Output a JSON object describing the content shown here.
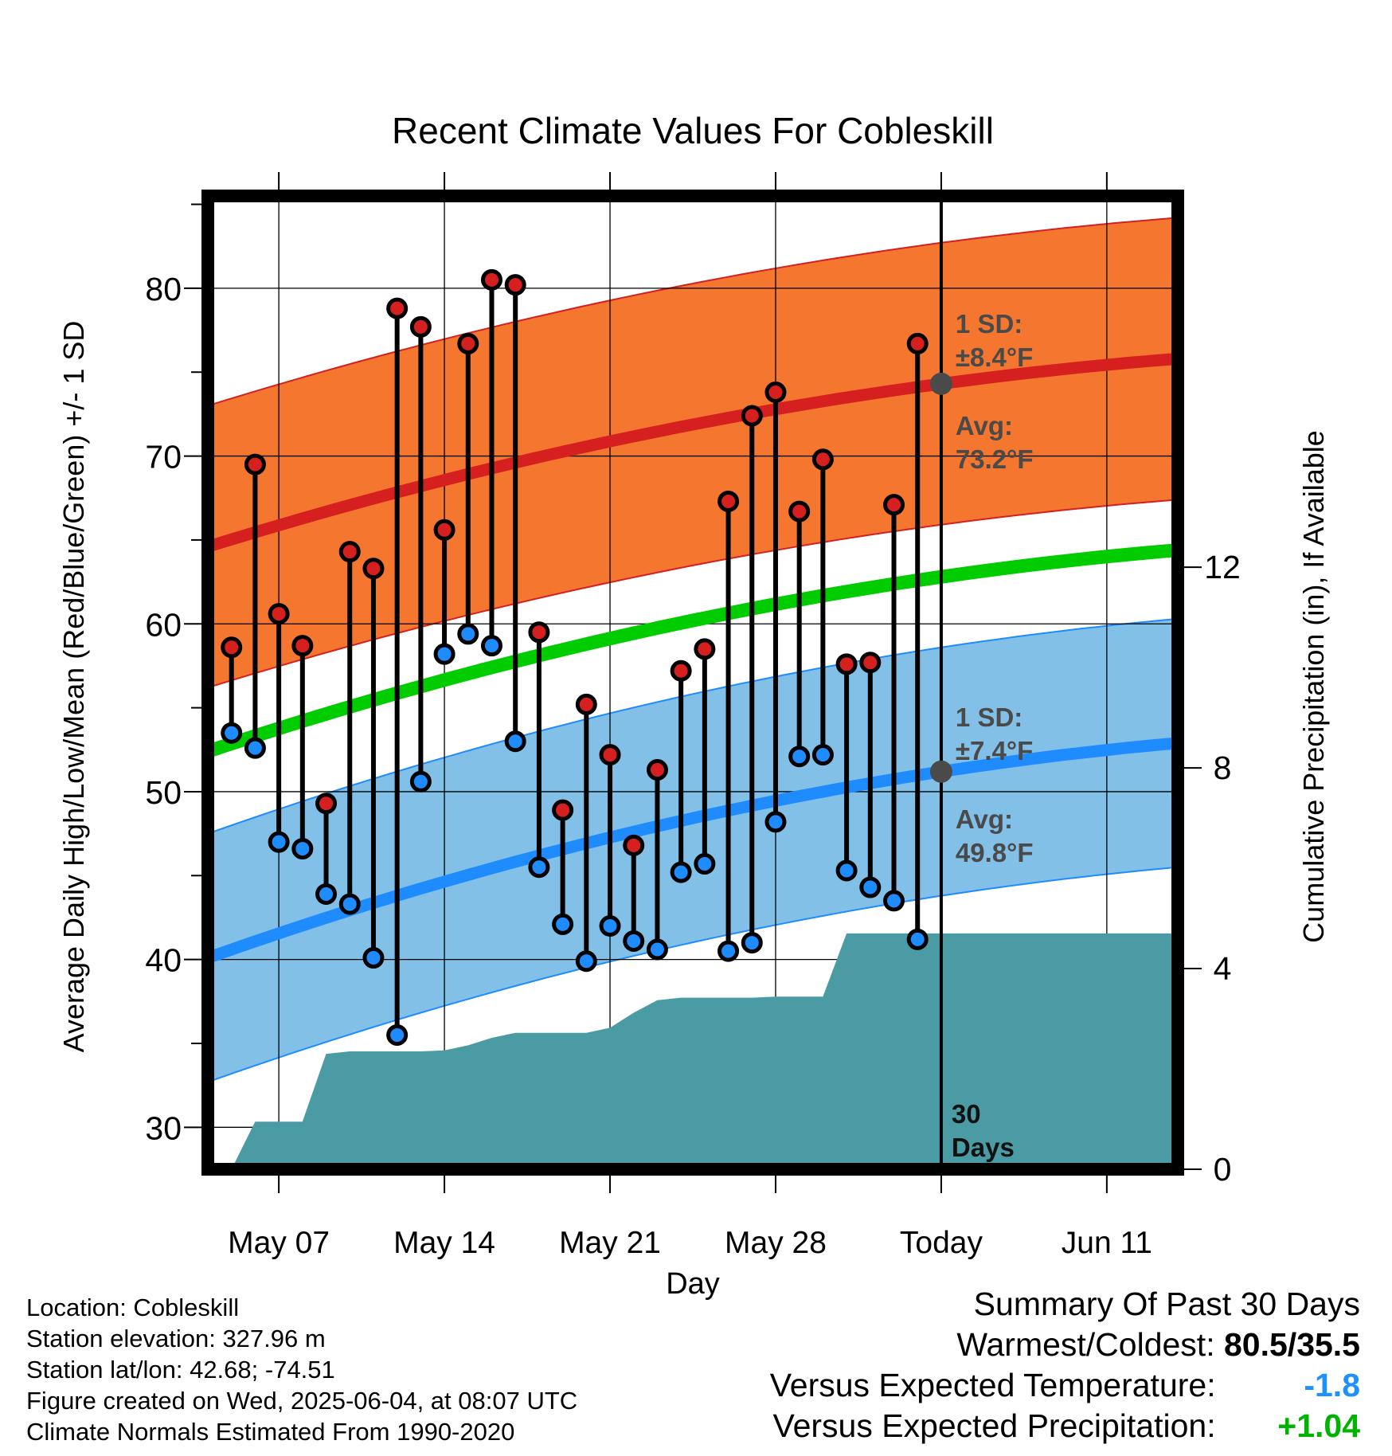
{
  "chart_data": {
    "type": "line",
    "title": "Recent Climate Values For Cobleskill",
    "xlabel": "Day",
    "ylabel": "Average Daily High/Low/Mean (Red/Blue/Green) +/- 1 SD",
    "y2label": "Cumulative Precipitation (in), If Available",
    "ylim": [
      27.5,
      85.5
    ],
    "y2lim": [
      0,
      19.4
    ],
    "yticks": [
      30,
      40,
      50,
      60,
      70,
      80
    ],
    "y2ticks": [
      0,
      4,
      8,
      12
    ],
    "xticks": [
      "May 07",
      "May 14",
      "May 21",
      "May 28",
      "Today",
      "Jun 11"
    ],
    "xlim": [
      "2025-05-04",
      "2025-06-14"
    ],
    "today": "2025-06-04",
    "days": [
      "2025-05-05",
      "2025-05-06",
      "2025-05-07",
      "2025-05-08",
      "2025-05-09",
      "2025-05-10",
      "2025-05-11",
      "2025-05-12",
      "2025-05-13",
      "2025-05-14",
      "2025-05-15",
      "2025-05-16",
      "2025-05-17",
      "2025-05-18",
      "2025-05-19",
      "2025-05-20",
      "2025-05-21",
      "2025-05-22",
      "2025-05-23",
      "2025-05-24",
      "2025-05-25",
      "2025-05-26",
      "2025-05-27",
      "2025-05-28",
      "2025-05-29",
      "2025-05-30",
      "2025-05-31",
      "2025-06-01",
      "2025-06-02",
      "2025-06-03"
    ],
    "highs": [
      58.6,
      69.5,
      60.6,
      58.7,
      49.3,
      64.3,
      63.3,
      78.8,
      77.7,
      65.6,
      76.7,
      80.5,
      80.2,
      59.5,
      48.9,
      55.2,
      52.2,
      46.8,
      51.3,
      57.2,
      58.5,
      67.3,
      72.4,
      73.8,
      66.7,
      69.8,
      57.6,
      57.7,
      67.1,
      76.7
    ],
    "lows": [
      53.5,
      52.6,
      47.0,
      46.6,
      43.9,
      43.3,
      40.1,
      35.5,
      50.6,
      58.2,
      59.4,
      58.7,
      53.0,
      45.5,
      42.1,
      39.9,
      42.0,
      41.1,
      40.6,
      45.2,
      45.7,
      40.5,
      41.0,
      48.2,
      52.1,
      52.2,
      45.3,
      44.3,
      43.5,
      41.2
    ],
    "normal_high": {
      "name": "Avg:",
      "value_label": "73.2°F",
      "sd_label": "1 SD:",
      "sd_value": "±8.4°F",
      "start": 64.6,
      "end": 75.8,
      "sd": 8.4
    },
    "normal_low": {
      "name": "Avg:",
      "value_label": "49.8°F",
      "sd_label": "1 SD:",
      "sd_value": "±7.4°F",
      "start": 40.1,
      "end": 52.9,
      "sd": 7.4
    },
    "normal_mean": {
      "start": 52.4,
      "end": 64.4
    },
    "precip": {
      "x": [
        "2025-05-04",
        "2025-05-05",
        "2025-05-06",
        "2025-05-07",
        "2025-05-08",
        "2025-05-09",
        "2025-05-10",
        "2025-05-11",
        "2025-05-12",
        "2025-05-13",
        "2025-05-14",
        "2025-05-15",
        "2025-05-16",
        "2025-05-17",
        "2025-05-18",
        "2025-05-19",
        "2025-05-20",
        "2025-05-21",
        "2025-05-22",
        "2025-05-23",
        "2025-05-24",
        "2025-05-25",
        "2025-05-26",
        "2025-05-27",
        "2025-05-28",
        "2025-05-29",
        "2025-05-30",
        "2025-05-31",
        "2025-06-01",
        "2025-06-02",
        "2025-06-03",
        "2025-06-14"
      ],
      "y": [
        0,
        0,
        0.95,
        0.95,
        0.95,
        2.3,
        2.35,
        2.35,
        2.35,
        2.35,
        2.37,
        2.47,
        2.62,
        2.72,
        2.72,
        2.72,
        2.72,
        2.82,
        3.12,
        3.37,
        3.42,
        3.42,
        3.42,
        3.42,
        3.44,
        3.44,
        3.44,
        4.7,
        4.7,
        4.7,
        4.7,
        4.7
      ]
    },
    "legend": "none",
    "annotation": {
      "count": "30",
      "unit": "Days"
    },
    "colors": {
      "high_band": "#f5772f",
      "low_band": "#82c0e8",
      "high_line": "#d62020",
      "low_line": "#1e8cff",
      "mean_line": "#00cc00",
      "precip": "#4a9ba4",
      "high_dot": "#d62020",
      "low_dot": "#1e8cff",
      "annot": "#4a4a4a"
    }
  },
  "info": {
    "location": "Location: Cobleskill",
    "elevation": "Station elevation: 327.96 m",
    "latlon": "Station lat/lon: 42.68; -74.51",
    "created": "Figure created on Wed, 2025-06-04, at 08:07 UTC",
    "normals": "Climate Normals Estimated From 1990-2020"
  },
  "summary": {
    "title": "Summary Of Past 30 Days",
    "warm_cold_label": "Warmest/Coldest:",
    "warm_cold_value": "80.5/35.5",
    "temp_label": "Versus Expected Temperature:",
    "temp_value": "-1.8",
    "precip_label": "Versus Expected Precipitation:",
    "precip_value": "+1.04"
  }
}
